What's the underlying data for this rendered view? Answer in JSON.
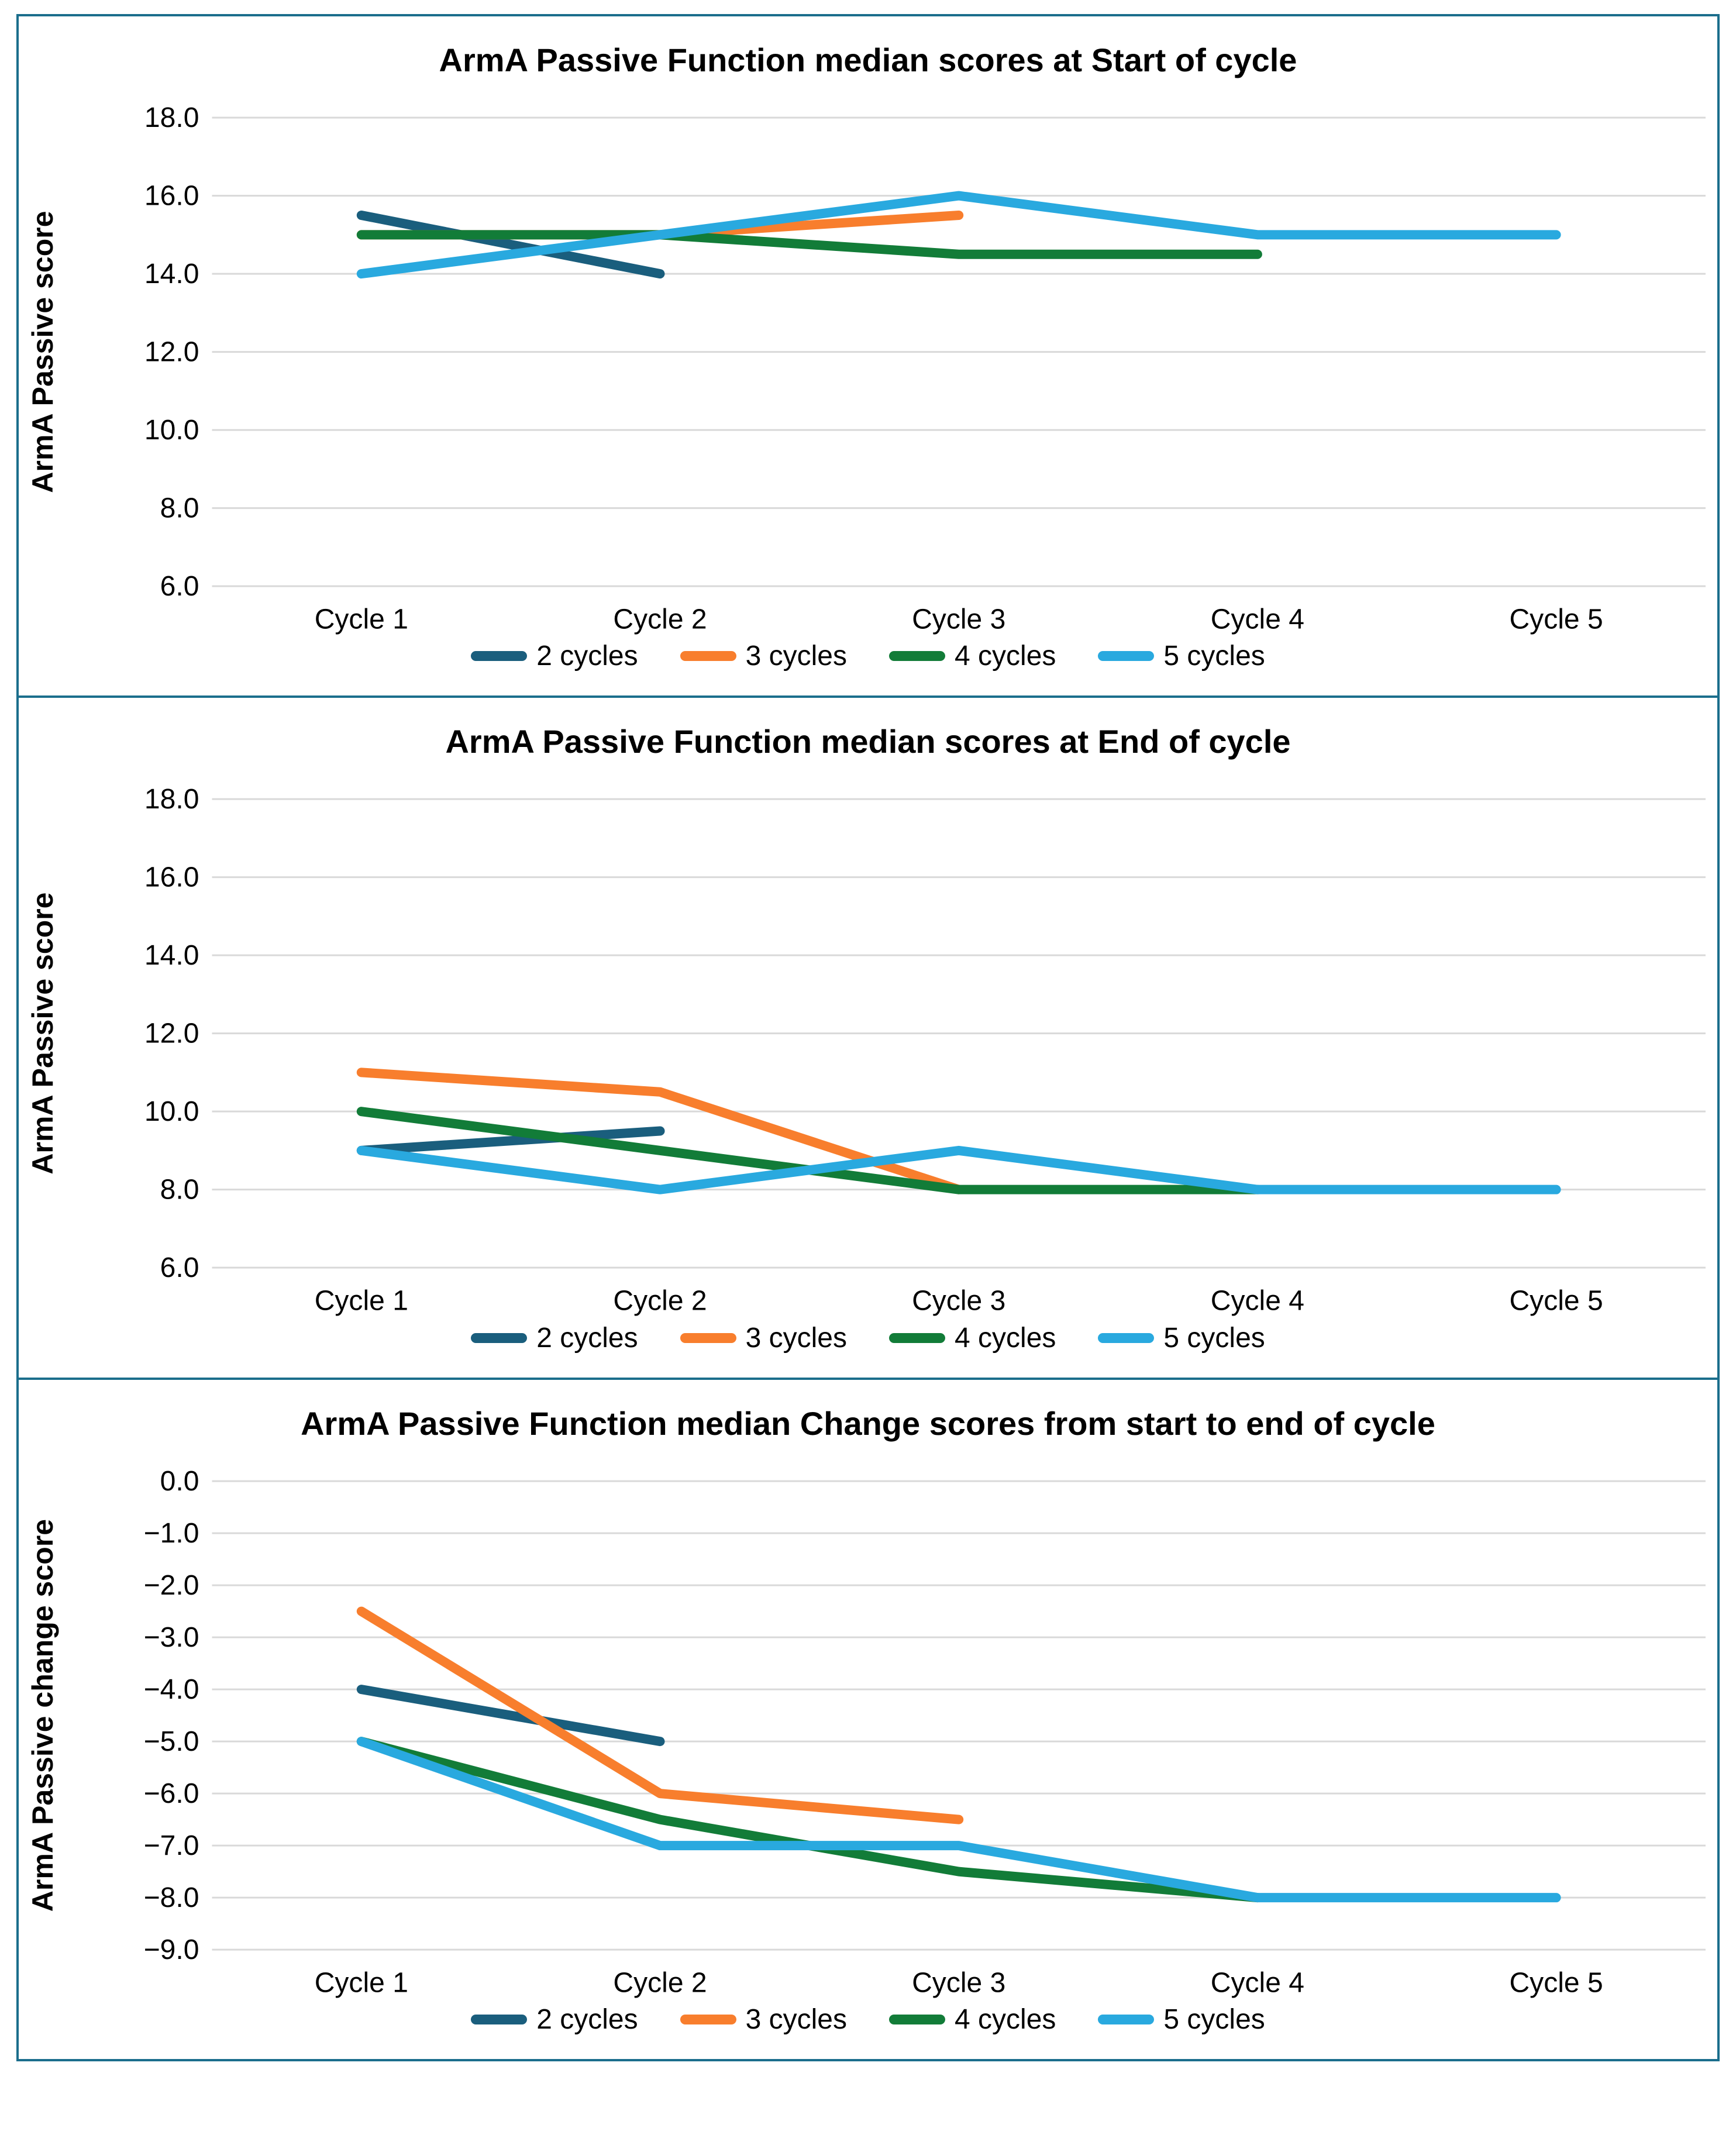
{
  "page": {
    "background": "#FFFFFF",
    "panel_border_color": "#1B6E8C",
    "gridline_color": "#D9D9D9"
  },
  "legend_labels": [
    "2 cycles",
    "3 cycles",
    "4 cycles",
    "5 cycles"
  ],
  "series_colors": {
    "2 cycles": "#1A5E7D",
    "3 cycles": "#F87E2D",
    "4 cycles": "#127C38",
    "5 cycles": "#29A9DF"
  },
  "chart_data": [
    {
      "type": "line",
      "title": "ArmA Passive Function median scores at Start of cycle",
      "xlabel": "",
      "ylabel": "ArmA Passive score",
      "categories": [
        "Cycle 1",
        "Cycle 2",
        "Cycle 3",
        "Cycle 4",
        "Cycle 5"
      ],
      "ylim": [
        6,
        18
      ],
      "grid": true,
      "legend_position": "bottom",
      "yticks": [
        {
          "v": 18,
          "label": "18.0"
        },
        {
          "v": 16,
          "label": "16.0"
        },
        {
          "v": 14,
          "label": "14.0"
        },
        {
          "v": 12,
          "label": "12.0"
        },
        {
          "v": 10,
          "label": "10.0"
        },
        {
          "v": 8,
          "label": "8.0"
        },
        {
          "v": 6,
          "label": "6.0"
        }
      ],
      "series": [
        {
          "name": "2 cycles",
          "color": "#1A5E7D",
          "values": [
            15.5,
            14.0
          ]
        },
        {
          "name": "3 cycles",
          "color": "#F87E2D",
          "values": [
            15.0,
            15.0,
            15.5
          ]
        },
        {
          "name": "4 cycles",
          "color": "#127C38",
          "values": [
            15.0,
            15.0,
            14.5,
            14.5
          ]
        },
        {
          "name": "5 cycles",
          "color": "#29A9DF",
          "values": [
            14.0,
            15.0,
            16.0,
            15.0,
            15.0
          ]
        }
      ]
    },
    {
      "type": "line",
      "title": "ArmA Passive Function median scores at End of cycle",
      "xlabel": "",
      "ylabel": "ArmA Passive score",
      "categories": [
        "Cycle 1",
        "Cycle 2",
        "Cycle 3",
        "Cycle 4",
        "Cycle 5"
      ],
      "ylim": [
        6,
        18
      ],
      "grid": true,
      "legend_position": "bottom",
      "yticks": [
        {
          "v": 18,
          "label": "18.0"
        },
        {
          "v": 16,
          "label": "16.0"
        },
        {
          "v": 14,
          "label": "14.0"
        },
        {
          "v": 12,
          "label": "12.0"
        },
        {
          "v": 10,
          "label": "10.0"
        },
        {
          "v": 8,
          "label": "8.0"
        },
        {
          "v": 6,
          "label": "6.0"
        }
      ],
      "series": [
        {
          "name": "2 cycles",
          "color": "#1A5E7D",
          "values": [
            9.0,
            9.5
          ]
        },
        {
          "name": "3 cycles",
          "color": "#F87E2D",
          "values": [
            11.0,
            10.5,
            8.0
          ]
        },
        {
          "name": "4 cycles",
          "color": "#127C38",
          "values": [
            10.0,
            9.0,
            8.0,
            8.0
          ]
        },
        {
          "name": "5 cycles",
          "color": "#29A9DF",
          "values": [
            9.0,
            8.0,
            9.0,
            8.0,
            8.0
          ]
        }
      ]
    },
    {
      "type": "line",
      "title": "ArmA Passive Function median Change scores from  start to end of cycle",
      "xlabel": "",
      "ylabel": "ArmA Passive change  score",
      "categories": [
        "Cycle 1",
        "Cycle 2",
        "Cycle 3",
        "Cycle 4",
        "Cycle 5"
      ],
      "ylim": [
        -9,
        0
      ],
      "grid": true,
      "legend_position": "bottom",
      "yticks": [
        {
          "v": 0,
          "label": "0.0"
        },
        {
          "v": -1,
          "label": "−1.0"
        },
        {
          "v": -2,
          "label": "−2.0"
        },
        {
          "v": -3,
          "label": "−3.0"
        },
        {
          "v": -4,
          "label": "−4.0"
        },
        {
          "v": -5,
          "label": "−5.0"
        },
        {
          "v": -6,
          "label": "−6.0"
        },
        {
          "v": -7,
          "label": "−7.0"
        },
        {
          "v": -8,
          "label": "−8.0"
        },
        {
          "v": -9,
          "label": "−9.0"
        }
      ],
      "series": [
        {
          "name": "2 cycles",
          "color": "#1A5E7D",
          "values": [
            -4.0,
            -5.0
          ]
        },
        {
          "name": "3 cycles",
          "color": "#F87E2D",
          "values": [
            -2.5,
            -6.0,
            -6.5
          ]
        },
        {
          "name": "4 cycles",
          "color": "#127C38",
          "values": [
            -5.0,
            -6.5,
            -7.5,
            -8.0
          ]
        },
        {
          "name": "5 cycles",
          "color": "#29A9DF",
          "values": [
            -5.0,
            -7.0,
            -7.0,
            -8.0,
            -8.0
          ]
        }
      ]
    }
  ]
}
